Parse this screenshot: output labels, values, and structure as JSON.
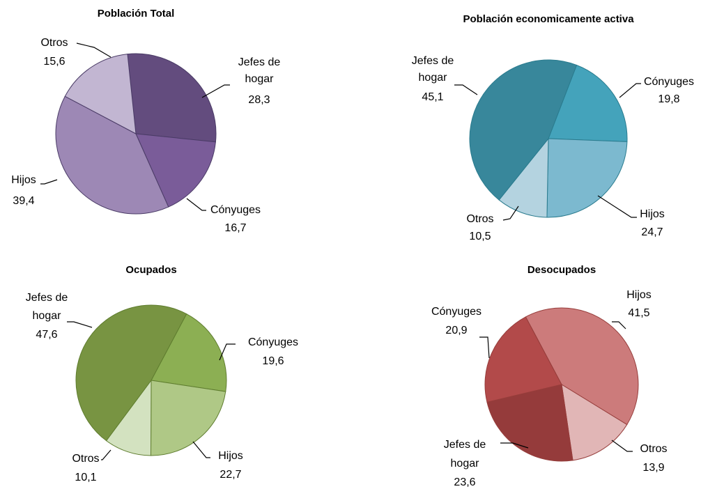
{
  "chart_data": [
    {
      "type": "pie",
      "title": "Población Total",
      "start_angle": -6,
      "border_color": "#4a3b66",
      "slices": [
        {
          "label": [
            "Jefes de",
            "hogar"
          ],
          "value_text": "28,3",
          "value": 28.3,
          "color": "#634c7e"
        },
        {
          "label": [
            "Cónyuges"
          ],
          "value_text": "16,7",
          "value": 16.7,
          "color": "#7a5c99"
        },
        {
          "label": [
            "Hijos"
          ],
          "value_text": "39,4",
          "value": 39.4,
          "color": "#9d88b5"
        },
        {
          "label": [
            "Otros"
          ],
          "value_text": "15,6",
          "value": 15.6,
          "color": "#c2b6d2"
        }
      ]
    },
    {
      "type": "pie",
      "title": "Población economicamente activa",
      "start_angle": 21,
      "border_color": "#2a7b8e",
      "slices": [
        {
          "label": [
            "Cónyuges"
          ],
          "value_text": "19,8",
          "value": 19.8,
          "color": "#44a3bb"
        },
        {
          "label": [
            "Hijos"
          ],
          "value_text": "24,7",
          "value": 24.7,
          "color": "#7cb9cf"
        },
        {
          "label": [
            "Otros"
          ],
          "value_text": "10,5",
          "value": 10.5,
          "color": "#b4d3e0"
        },
        {
          "label": [
            "Jefes de",
            "hogar"
          ],
          "value_text": "45,1",
          "value": 45.1,
          "color": "#38879b"
        }
      ]
    },
    {
      "type": "pie",
      "title": "Ocupados",
      "start_angle": 28,
      "border_color": "#5f7d2f",
      "slices": [
        {
          "label": [
            "Cónyuges"
          ],
          "value_text": "19,6",
          "value": 19.6,
          "color": "#8caf53"
        },
        {
          "label": [
            "Hijos"
          ],
          "value_text": "22,7",
          "value": 22.7,
          "color": "#afc886"
        },
        {
          "label": [
            "Otros"
          ],
          "value_text": "10,1",
          "value": 10.1,
          "color": "#d3e2c0"
        },
        {
          "label": [
            "Jefes de",
            "hogar"
          ],
          "value_text": "47,6",
          "value": 47.6,
          "color": "#789442"
        }
      ]
    },
    {
      "type": "pie",
      "title": "Desocupados",
      "start_angle": -28,
      "border_color": "#963d3b",
      "slices": [
        {
          "label": [
            "Hijos"
          ],
          "value_text": "41,5",
          "value": 41.5,
          "color": "#cc7b7b"
        },
        {
          "label": [
            "Otros"
          ],
          "value_text": "13,9",
          "value": 13.9,
          "color": "#e1b6b6"
        },
        {
          "label": [
            "Jefes de",
            "hogar"
          ],
          "value_text": "23,6",
          "value": 23.6,
          "color": "#953b3b"
        },
        {
          "label": [
            "Cónyuges"
          ],
          "value_text": "20,9",
          "value": 20.9,
          "color": "#b24a4a"
        }
      ]
    }
  ]
}
